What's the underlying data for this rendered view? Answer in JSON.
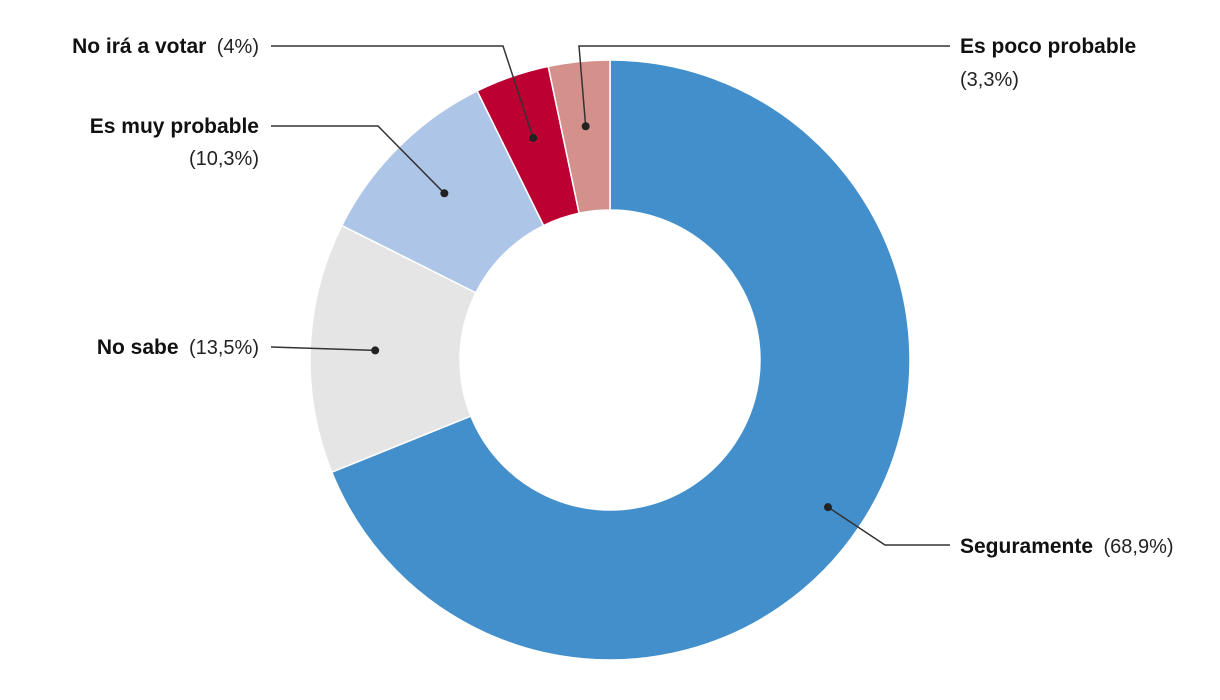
{
  "chart_data": {
    "type": "pie",
    "variant": "donut",
    "start": "top",
    "direction": "clockwise",
    "legend": "none",
    "slices": [
      {
        "name": "Seguramente",
        "value": 68.9,
        "value_label": "(68,9%)",
        "color": "#428fcb"
      },
      {
        "name": "No sabe",
        "value": 13.5,
        "value_label": "(13,5%)",
        "color": "#e5e5e5"
      },
      {
        "name": "Es muy probable",
        "value": 10.3,
        "value_label": "(10,3%)",
        "color": "#adc5e7"
      },
      {
        "name": "No irá a votar",
        "value": 4.0,
        "value_label": "(4%)",
        "color": "#bc0032"
      },
      {
        "name": "Es poco probable",
        "value": 3.3,
        "value_label": "(3,3%)",
        "color": "#d4918b"
      }
    ]
  }
}
